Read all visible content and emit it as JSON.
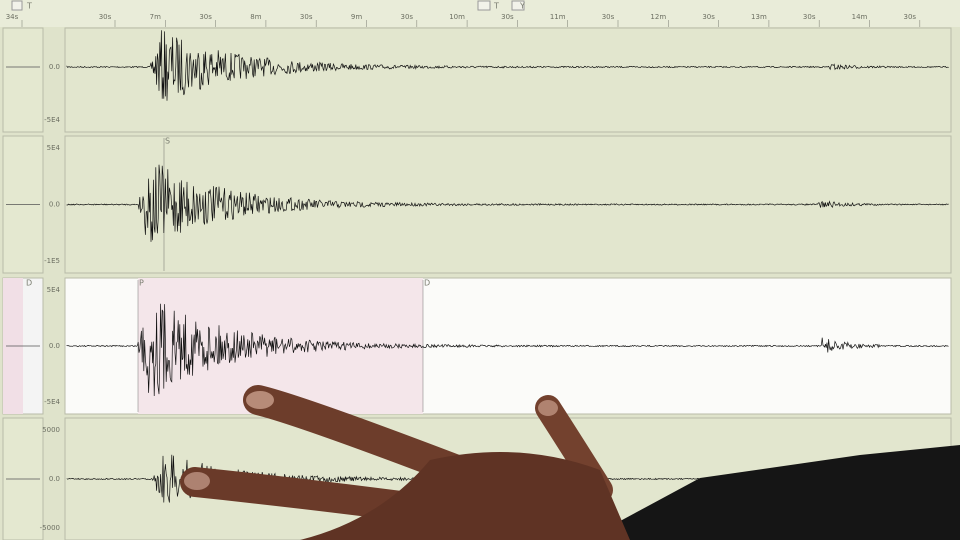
{
  "toolbar": {
    "left": [
      "T"
    ],
    "right": [
      "T",
      "Y"
    ]
  },
  "time_axis": {
    "labels": [
      "34s",
      "30s",
      "7m",
      "30s",
      "8m",
      "30s",
      "9m",
      "30s",
      "10m",
      "30s",
      "11m",
      "30s",
      "12m",
      "30s",
      "13m",
      "30s",
      "14m",
      "30s"
    ]
  },
  "channels": [
    {
      "labels": [
        "0.0",
        "-5E4"
      ]
    },
    {
      "labels": [
        "5E4",
        "0.0",
        "-1E5"
      ],
      "phases": [
        "S"
      ]
    },
    {
      "labels": [
        "5E4",
        "0.0",
        "-5E4"
      ],
      "phases": [
        "D",
        "P",
        "D"
      ]
    },
    {
      "labels": [
        "5000",
        "0.0",
        "-5000"
      ]
    }
  ]
}
